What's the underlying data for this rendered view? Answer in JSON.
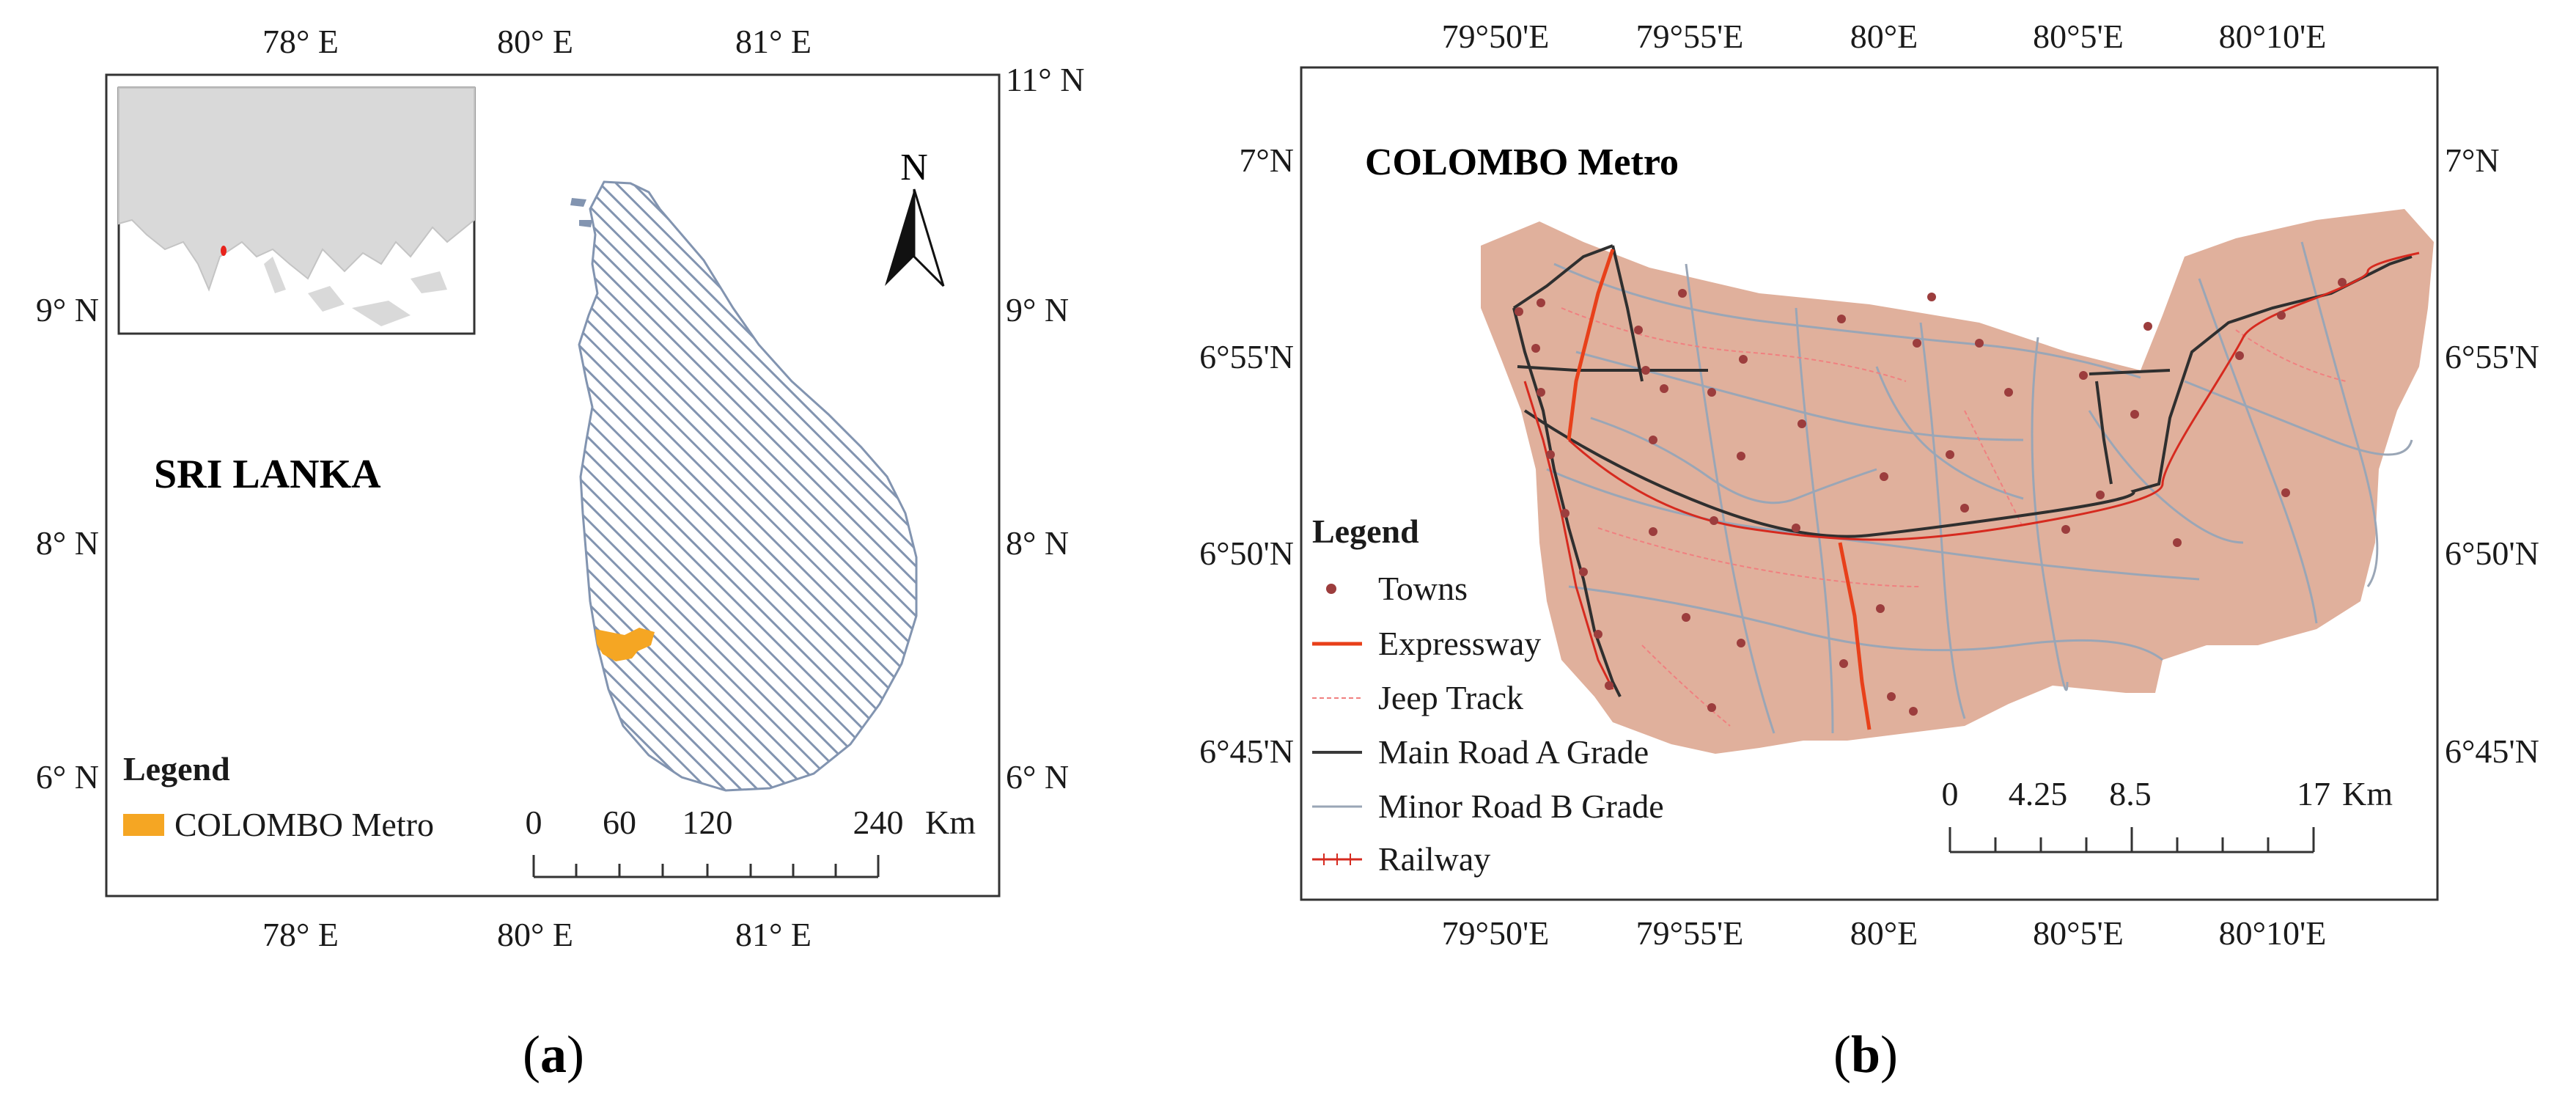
{
  "panel_a": {
    "top_ticks": [
      "78° E",
      "80° E",
      "81° E"
    ],
    "bottom_ticks": [
      "78° E",
      "80° E",
      "81° E"
    ],
    "right_ticks": [
      "11° N",
      "9° N",
      "8° N",
      "6° N"
    ],
    "left_ticks": [
      "9° N",
      "8° N",
      "6° N"
    ],
    "country_label": "SRI LANKA",
    "north": "N",
    "legend_title": "Legend",
    "legend_item": "COLOMBO Metro",
    "scale_labels": [
      "0",
      "60",
      "120",
      "240",
      "Km"
    ],
    "caption_open": "(",
    "caption_letter": "a",
    "caption_close": ")"
  },
  "panel_b": {
    "top_ticks": [
      "79°50'E",
      "79°55'E",
      "80°E",
      "80°5'E",
      "80°10'E"
    ],
    "bottom_ticks": [
      "79°50'E",
      "79°55'E",
      "80°E",
      "80°5'E",
      "80°10'E"
    ],
    "left_ticks": [
      "7°N",
      "6°55'N",
      "6°50'N",
      "6°45'N"
    ],
    "right_ticks": [
      "7°N",
      "6°55'N",
      "6°50'N",
      "6°45'N"
    ],
    "title": "COLOMBO Metro",
    "legend_title": "Legend",
    "legend_items": [
      "Towns",
      "Expressway",
      "Jeep Track",
      "Main Road A Grade",
      "Minor Road B Grade",
      "Railway"
    ],
    "scale_labels": [
      "0",
      "4.25",
      "8.5",
      "17",
      "Km"
    ],
    "caption_open": "(",
    "caption_letter": "b",
    "caption_close": ")"
  },
  "colors": {
    "metro_orange": "#f5a623",
    "metro_fill_b": "#e0b09c",
    "expressway": "#e8401a",
    "railway": "#d62a1f",
    "main_road": "#3a3a3a",
    "minor_road": "#9aa6b6",
    "town": "#9c3d3d",
    "hatch": "#8294b0",
    "land_gray": "#d9d9d9"
  }
}
